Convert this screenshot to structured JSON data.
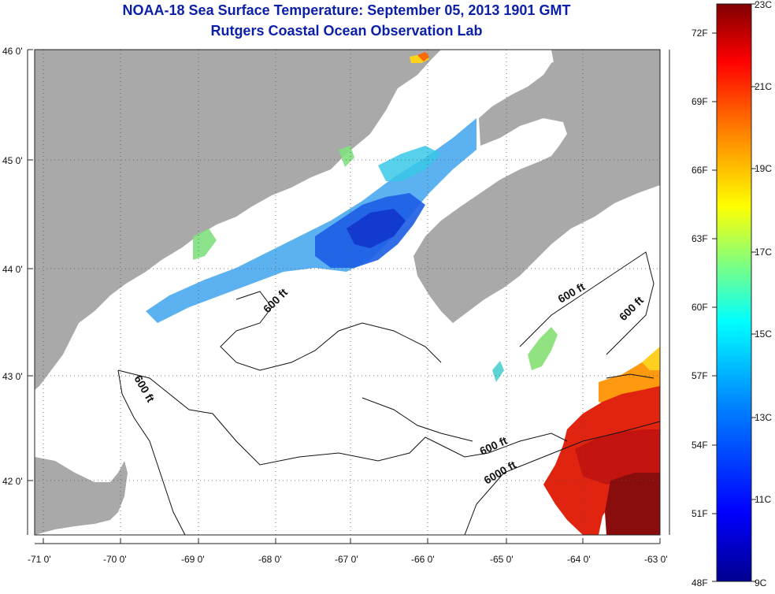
{
  "title": {
    "line1": "NOAA-18 Sea Surface Temperature:  September 05, 2013 1901 GMT",
    "line2": "Rutgers Coastal Ocean Observation Lab"
  },
  "map": {
    "lat_labels": [
      "46 0'",
      "45 0'",
      "44 0'",
      "43 0'",
      "42 0'"
    ],
    "lon_labels": [
      "-71 0'",
      "-70 0'",
      "-69 0'",
      "-68 0'",
      "-67 0'",
      "-66 0'",
      "-65 0'",
      "-64 0'",
      "-63 0'"
    ],
    "contour_labels": [
      "600 ft",
      "600 ft",
      "600 ft",
      "600 ft",
      "6000 ft"
    ],
    "colors": {
      "land": "#a9a9a9",
      "ocean_no_data": "#ffffff",
      "grid": "#555555"
    }
  },
  "colorbar": {
    "fahrenheit_labels": [
      "72F",
      "69F",
      "66F",
      "63F",
      "60F",
      "57F",
      "54F",
      "51F",
      "48F"
    ],
    "celsius_labels": [
      "23C",
      "21C",
      "19C",
      "17C",
      "15C",
      "13C",
      "11C",
      "9C"
    ],
    "colormap": [
      "#00008f",
      "#0000ff",
      "#0080ff",
      "#00ffff",
      "#80ff80",
      "#ffff00",
      "#ff8000",
      "#ff0000",
      "#800000"
    ]
  }
}
